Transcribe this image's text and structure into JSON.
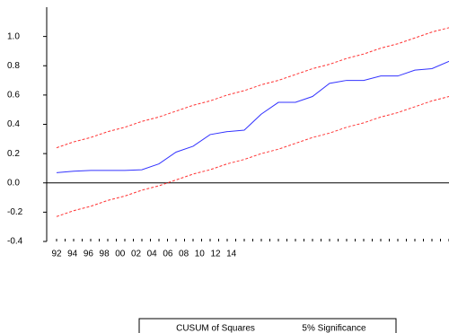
{
  "chart_data": {
    "type": "line",
    "categories": [
      null,
      null,
      null,
      null,
      null,
      null,
      null,
      null,
      null,
      null,
      null,
      null,
      null,
      null,
      null,
      null,
      null,
      null,
      null,
      null,
      null,
      null,
      null,
      null
    ],
    "x_axis_labels": [
      "92",
      "94",
      "96",
      "98",
      "00",
      "02",
      "04",
      "06",
      "08",
      "10",
      "12",
      "14"
    ],
    "series": [
      {
        "name": "CUSUM of Squares",
        "color": "#3333ff",
        "style": "solid",
        "values": [
          0.07,
          0.08,
          0.085,
          0.085,
          0.085,
          0.09,
          0.13,
          0.21,
          0.25,
          0.33,
          0.35,
          0.36,
          0.47,
          0.55,
          0.55,
          0.59,
          0.68,
          0.7,
          0.7,
          0.73,
          0.73,
          0.77,
          0.78,
          0.83
        ]
      },
      {
        "name": "5% Significance",
        "color": "#ff3333",
        "style": "dashed",
        "values": [
          0.24,
          0.28,
          0.31,
          0.35,
          0.38,
          0.42,
          0.45,
          0.49,
          0.53,
          0.56,
          0.6,
          0.63,
          0.67,
          0.7,
          0.74,
          0.78,
          0.81,
          0.85,
          0.88,
          0.92,
          0.95,
          0.99,
          1.03,
          1.06
        ]
      },
      {
        "color": "#ff3333",
        "style": "dashed",
        "values": [
          -0.23,
          -0.19,
          -0.16,
          -0.12,
          -0.09,
          -0.05,
          -0.02,
          0.02,
          0.06,
          0.09,
          0.13,
          0.16,
          0.2,
          0.23,
          0.27,
          0.31,
          0.34,
          0.38,
          0.41,
          0.45,
          0.48,
          0.52,
          0.56,
          0.59
        ]
      }
    ],
    "ylim": [
      -0.4,
      1.2
    ],
    "yticks": [
      {
        "value": -0.4,
        "label": "-0.4"
      },
      -0.2,
      {
        "value": 0,
        "label": "0.0"
      },
      0.2,
      0.4,
      0.6,
      0.8,
      {
        "value": 1,
        "label": "1.0"
      }
    ],
    "zero_line": true
  }
}
